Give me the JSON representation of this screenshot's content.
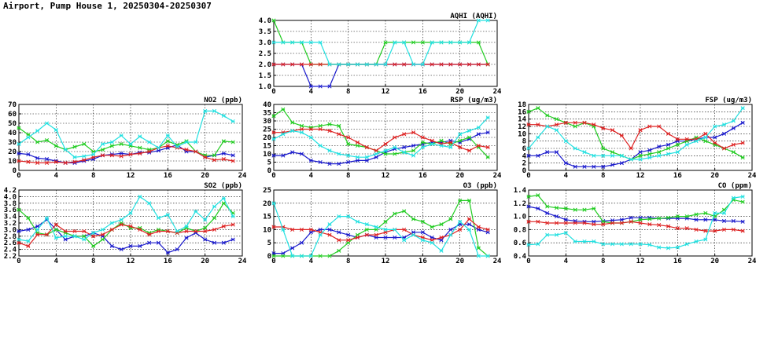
{
  "header": {
    "title": "Airport, Pump House 1, 20250304-20250307"
  },
  "colors": {
    "blue": "#1a1acc",
    "green": "#22cc22",
    "red": "#dd2222",
    "cyan": "#22e0e0"
  },
  "chart_data": [
    {
      "id": "aqhi",
      "type": "line",
      "title": "AQHI (AQHI)",
      "x_ticks": [
        0,
        4,
        8,
        12,
        16,
        20,
        24
      ],
      "ylim": [
        1.0,
        4.0
      ],
      "y_ticks": [
        1.0,
        1.5,
        2.0,
        2.5,
        3.0,
        3.5,
        4.0
      ],
      "y_tick_labels": [
        "1.0",
        "1.5",
        "2.0",
        "2.5",
        "3.0",
        "3.5",
        "4.0"
      ],
      "grid": true,
      "series": [
        {
          "color": "blue",
          "values": [
            2,
            2,
            2,
            2,
            1,
            1,
            1,
            2,
            2,
            2,
            2,
            2,
            2,
            2,
            2,
            2,
            2,
            2,
            2,
            2,
            2,
            2,
            2,
            2
          ]
        },
        {
          "color": "green",
          "values": [
            4,
            3,
            3,
            3,
            2,
            2,
            2,
            2,
            2,
            2,
            2,
            2,
            3,
            3,
            3,
            3,
            3,
            3,
            3,
            3,
            3,
            3,
            3,
            2
          ]
        },
        {
          "color": "red",
          "values": [
            2,
            2,
            2,
            2,
            2,
            2,
            2,
            2,
            2,
            2,
            2,
            2,
            2,
            2,
            2,
            2,
            2,
            2,
            2,
            2,
            2,
            2,
            2,
            2
          ]
        },
        {
          "color": "cyan",
          "values": [
            3,
            3,
            3,
            3,
            3,
            3,
            2,
            2,
            2,
            2,
            2,
            2,
            2,
            3,
            3,
            2,
            2,
            3,
            3,
            3,
            3,
            3,
            4,
            4
          ]
        }
      ]
    },
    {
      "id": "no2",
      "type": "line",
      "title": "NO2 (ppb)",
      "x_ticks": [
        0,
        4,
        8,
        12,
        16,
        20,
        24
      ],
      "ylim": [
        0,
        70
      ],
      "y_ticks": [
        0,
        10,
        20,
        30,
        40,
        50,
        60,
        70
      ],
      "y_tick_labels": [
        "0",
        "10",
        "20",
        "30",
        "40",
        "50",
        "60",
        "70"
      ],
      "grid": true,
      "series": [
        {
          "color": "blue",
          "values": [
            18,
            17,
            13,
            12,
            10,
            8,
            8,
            10,
            12,
            16,
            17,
            18,
            17,
            19,
            19,
            21,
            24,
            27,
            20,
            20,
            14,
            16,
            18,
            16
          ]
        },
        {
          "color": "green",
          "values": [
            45,
            38,
            30,
            32,
            26,
            22,
            25,
            28,
            20,
            22,
            26,
            28,
            26,
            24,
            22,
            24,
            31,
            27,
            31,
            20,
            16,
            16,
            31,
            30
          ]
        },
        {
          "color": "red",
          "values": [
            10,
            9,
            8,
            8,
            9,
            8,
            9,
            11,
            14,
            16,
            16,
            15,
            17,
            18,
            20,
            24,
            26,
            24,
            22,
            20,
            14,
            11,
            12,
            10
          ]
        },
        {
          "color": "cyan",
          "values": [
            28,
            35,
            42,
            50,
            43,
            22,
            14,
            15,
            17,
            28,
            30,
            37,
            28,
            36,
            30,
            24,
            37,
            25,
            30,
            30,
            63,
            63,
            58,
            52
          ]
        }
      ]
    },
    {
      "id": "rsp",
      "type": "line",
      "title": "RSP (ug/m3)",
      "x_ticks": [
        0,
        4,
        8,
        12,
        16,
        20,
        24
      ],
      "ylim": [
        0,
        40
      ],
      "y_ticks": [
        0,
        5,
        10,
        15,
        20,
        25,
        30,
        35,
        40
      ],
      "y_tick_labels": [
        "0",
        "5",
        "10",
        "15",
        "20",
        "25",
        "30",
        "35",
        "40"
      ],
      "grid": true,
      "series": [
        {
          "color": "blue",
          "values": [
            9,
            9,
            11,
            10,
            6,
            5,
            4,
            4,
            5,
            6,
            6,
            8,
            11,
            13,
            14,
            15,
            16,
            17,
            17,
            18,
            17,
            19,
            22,
            23
          ]
        },
        {
          "color": "green",
          "values": [
            33,
            37,
            29,
            27,
            26,
            27,
            28,
            27,
            16,
            15,
            14,
            12,
            10,
            10,
            11,
            12,
            17,
            16,
            18,
            16,
            18,
            20,
            14,
            8
          ]
        },
        {
          "color": "red",
          "values": [
            23,
            23,
            24,
            25,
            25,
            25,
            24,
            22,
            20,
            17,
            14,
            12,
            16,
            20,
            22,
            23,
            20,
            18,
            16,
            17,
            14,
            12,
            15,
            14
          ]
        },
        {
          "color": "cyan",
          "values": [
            19,
            22,
            24,
            23,
            20,
            15,
            12,
            10,
            9,
            8,
            8,
            10,
            12,
            14,
            11,
            9,
            14,
            16,
            15,
            14,
            22,
            24,
            26,
            32
          ]
        }
      ]
    },
    {
      "id": "fsp",
      "type": "line",
      "title": "FSP (ug/m3)",
      "x_ticks": [
        0,
        4,
        8,
        12,
        16,
        20,
        24
      ],
      "ylim": [
        0,
        18
      ],
      "y_ticks": [
        0,
        2,
        4,
        6,
        8,
        10,
        12,
        14,
        16,
        18
      ],
      "y_tick_labels": [
        "0",
        "2",
        "4",
        "6",
        "8",
        "10",
        "12",
        "14",
        "16",
        "18"
      ],
      "grid": true,
      "series": [
        {
          "color": "blue",
          "values": [
            4,
            4,
            5,
            5,
            2,
            1,
            1,
            1,
            1,
            1.5,
            2,
            3,
            5,
            5.5,
            6.5,
            7,
            8,
            8,
            8.5,
            9,
            9,
            10,
            11.5,
            13
          ]
        },
        {
          "color": "green",
          "values": [
            16,
            17,
            15,
            14,
            13,
            12,
            13,
            12,
            6,
            5,
            4,
            3,
            4,
            4.5,
            5,
            6,
            7,
            8,
            9,
            8,
            7,
            6,
            5,
            3.5
          ]
        },
        {
          "color": "red",
          "values": [
            12.5,
            12.5,
            12,
            12.5,
            13,
            13,
            13,
            12.5,
            11.5,
            11,
            9.5,
            6,
            11,
            12,
            12,
            10,
            8.5,
            8.5,
            8.5,
            10,
            7.5,
            6,
            7,
            7.5
          ]
        },
        {
          "color": "cyan",
          "values": [
            6,
            9,
            12,
            11,
            8,
            6,
            5,
            4,
            4,
            4,
            4,
            3,
            3,
            3.5,
            4,
            4.5,
            5,
            7,
            8,
            9,
            12,
            12.5,
            13.5,
            17
          ]
        }
      ]
    },
    {
      "id": "so2",
      "type": "line",
      "title": "SO2 (ppb)",
      "x_ticks": [
        0,
        4,
        8,
        12,
        16,
        20,
        24
      ],
      "ylim": [
        2.2,
        4.2
      ],
      "y_ticks": [
        2.2,
        2.4,
        2.6,
        2.8,
        3.0,
        3.2,
        3.4,
        3.6,
        3.8,
        4.0,
        4.2
      ],
      "y_tick_labels": [
        "2.2",
        "2.4",
        "2.6",
        "2.8",
        "3.0",
        "3.2",
        "3.4",
        "3.6",
        "3.8",
        "4.0",
        "4.2"
      ],
      "grid": true,
      "series": [
        {
          "color": "blue",
          "values": [
            2.95,
            3.0,
            3.1,
            3.3,
            3.0,
            2.7,
            2.8,
            2.8,
            2.9,
            2.8,
            2.5,
            2.4,
            2.5,
            2.5,
            2.6,
            2.6,
            2.3,
            2.4,
            2.75,
            2.9,
            2.7,
            2.6,
            2.6,
            2.7
          ]
        },
        {
          "color": "green",
          "values": [
            3.6,
            3.35,
            2.9,
            2.85,
            3.0,
            2.9,
            2.8,
            2.8,
            2.5,
            2.7,
            3.0,
            3.2,
            3.05,
            3.05,
            2.9,
            3.0,
            2.95,
            2.9,
            3.05,
            2.95,
            3.05,
            3.35,
            3.8,
            3.5
          ]
        },
        {
          "color": "red",
          "values": [
            2.6,
            2.5,
            2.85,
            2.85,
            3.15,
            2.95,
            2.95,
            2.95,
            2.8,
            2.85,
            3.0,
            3.15,
            3.1,
            3.0,
            2.85,
            2.95,
            2.95,
            2.9,
            2.95,
            2.95,
            2.95,
            3.0,
            3.1,
            3.15
          ]
        },
        {
          "color": "cyan",
          "values": [
            2.7,
            2.65,
            3.0,
            3.35,
            2.75,
            2.8,
            2.8,
            2.7,
            2.9,
            3.0,
            3.2,
            3.3,
            3.5,
            4.0,
            3.8,
            3.35,
            3.45,
            2.95,
            3.1,
            3.55,
            3.3,
            3.7,
            3.95,
            3.4
          ]
        }
      ]
    },
    {
      "id": "o3",
      "type": "line",
      "title": "O3 (ppb)",
      "x_ticks": [
        0,
        4,
        8,
        12,
        16,
        20,
        24
      ],
      "ylim": [
        0,
        25
      ],
      "y_ticks": [
        0,
        5,
        10,
        15,
        20,
        25
      ],
      "y_tick_labels": [
        "0",
        "5",
        "10",
        "15",
        "20",
        "25"
      ],
      "grid": true,
      "series": [
        {
          "color": "blue",
          "values": [
            1,
            1,
            3,
            5,
            9,
            10,
            10,
            9,
            8,
            7,
            8,
            7,
            7,
            7,
            7,
            9,
            9,
            7,
            6,
            10,
            12,
            12,
            10,
            9
          ]
        },
        {
          "color": "green",
          "values": [
            0,
            0,
            0,
            0,
            0,
            0,
            0,
            2,
            5,
            8,
            10,
            10,
            13,
            16,
            17,
            14,
            13,
            11,
            12,
            14,
            21,
            21,
            3,
            0
          ]
        },
        {
          "color": "red",
          "values": [
            11,
            11,
            10,
            10,
            10,
            9,
            8,
            6,
            6,
            7,
            8,
            8,
            9,
            10,
            10,
            8,
            7,
            6,
            7,
            8,
            10,
            14,
            11,
            10
          ]
        },
        {
          "color": "cyan",
          "values": [
            20,
            10,
            0,
            0,
            0,
            8,
            12,
            15,
            15,
            13,
            12,
            11,
            10,
            10,
            6,
            8,
            6,
            5,
            2,
            8,
            13,
            10,
            0,
            0
          ]
        }
      ]
    },
    {
      "id": "co",
      "type": "line",
      "title": "CO (ppm)",
      "x_ticks": [
        0,
        4,
        8,
        12,
        16,
        20,
        24
      ],
      "ylim": [
        0.4,
        1.4
      ],
      "y_ticks": [
        0.4,
        0.6,
        0.8,
        1.0,
        1.2,
        1.4
      ],
      "y_tick_labels": [
        "0.4",
        "0.6",
        "0.8",
        "1.0",
        "1.2",
        "1.4"
      ],
      "grid": true,
      "series": [
        {
          "color": "blue",
          "values": [
            1.15,
            1.12,
            1.05,
            1.0,
            0.95,
            0.93,
            0.92,
            0.92,
            0.93,
            0.94,
            0.95,
            0.98,
            0.98,
            0.98,
            0.97,
            0.97,
            0.97,
            0.97,
            0.95,
            0.95,
            0.95,
            0.93,
            0.93,
            0.92
          ]
        },
        {
          "color": "green",
          "values": [
            1.3,
            1.32,
            1.15,
            1.13,
            1.12,
            1.1,
            1.1,
            1.12,
            0.92,
            0.9,
            0.9,
            0.92,
            0.95,
            0.96,
            0.97,
            0.98,
            1.0,
            1.0,
            1.03,
            1.05,
            1.0,
            1.1,
            1.25,
            1.22
          ]
        },
        {
          "color": "red",
          "values": [
            0.92,
            0.92,
            0.9,
            0.9,
            0.9,
            0.9,
            0.9,
            0.88,
            0.88,
            0.9,
            0.9,
            0.92,
            0.9,
            0.88,
            0.87,
            0.85,
            0.82,
            0.82,
            0.8,
            0.78,
            0.78,
            0.8,
            0.8,
            0.78
          ]
        },
        {
          "color": "cyan",
          "values": [
            0.57,
            0.58,
            0.72,
            0.72,
            0.75,
            0.62,
            0.62,
            0.62,
            0.58,
            0.58,
            0.58,
            0.58,
            0.58,
            0.57,
            0.53,
            0.52,
            0.53,
            0.58,
            0.62,
            0.65,
            1.05,
            1.05,
            1.28,
            1.3
          ]
        }
      ]
    }
  ]
}
